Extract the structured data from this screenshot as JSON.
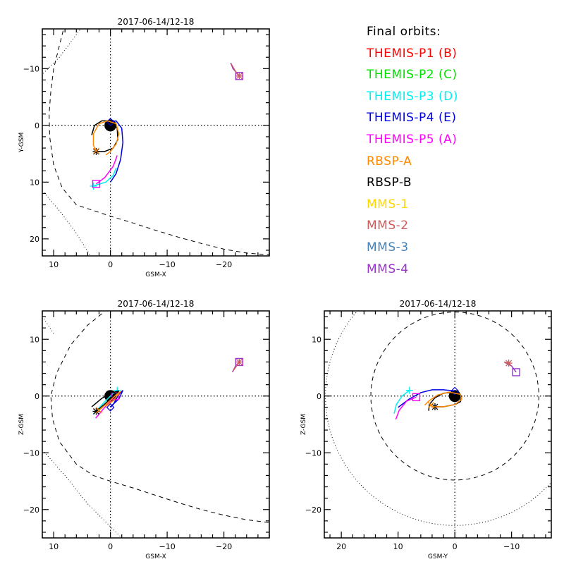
{
  "legend": {
    "title": "Final orbits:",
    "entries": [
      {
        "label": "THEMIS-P1 (B)",
        "color": "#ff0000"
      },
      {
        "label": "THEMIS-P2 (C)",
        "color": "#00e000"
      },
      {
        "label": "THEMIS-P3 (D)",
        "color": "#00f0f0"
      },
      {
        "label": "THEMIS-P4 (E)",
        "color": "#0000e0"
      },
      {
        "label": "THEMIS-P5 (A)",
        "color": "#ff00ff"
      },
      {
        "label": "RBSP-A",
        "color": "#ff8800"
      },
      {
        "label": "RBSP-B",
        "color": "#000000"
      },
      {
        "label": "MMS-1",
        "color": "#ffd700"
      },
      {
        "label": "MMS-2",
        "color": "#cd5c5c"
      },
      {
        "label": "MMS-3",
        "color": "#4682b4"
      },
      {
        "label": "MMS-4",
        "color": "#9932cc"
      }
    ]
  },
  "chart_data": [
    {
      "type": "line",
      "title": "2017-06-14/12-18",
      "xlabel": "GSM-X",
      "ylabel": "Y-GSM",
      "xlim": [
        12,
        -28
      ],
      "ylim": [
        -17,
        23
      ],
      "xticks": [
        10,
        0,
        -10,
        -20
      ],
      "yticks": [
        -10,
        0,
        10,
        20
      ],
      "grid": "dotted zero lines",
      "earth": [
        0,
        0
      ],
      "boundaries": {
        "magnetopause_dashed": [
          [
            8,
            -18
          ],
          [
            9,
            -14
          ],
          [
            10,
            -10
          ],
          [
            10.5,
            -6
          ],
          [
            10.8,
            -2
          ],
          [
            10.7,
            2
          ],
          [
            10,
            7
          ],
          [
            8.5,
            11
          ],
          [
            6,
            14
          ],
          [
            3,
            15
          ],
          [
            0,
            16
          ],
          [
            -4,
            17.2
          ],
          [
            -8,
            18.5
          ],
          [
            -12,
            19.7
          ],
          [
            -16,
            20.8
          ],
          [
            -20,
            21.8
          ],
          [
            -24,
            22.5
          ],
          [
            -28,
            22.8
          ]
        ],
        "bowshock_dotted": [
          [
            3,
            -20
          ],
          [
            6,
            -16
          ],
          [
            9,
            -12
          ],
          [
            12,
            -9
          ]
        ],
        "bowshock_dotted_lower": [
          [
            12,
            11.5
          ],
          [
            9,
            15
          ],
          [
            6,
            19
          ],
          [
            3.5,
            23
          ]
        ]
      },
      "series": [
        {
          "name": "THEMIS-P4 (E)",
          "color": "#0000e0",
          "points": [
            [
              0,
              10
            ],
            [
              -1,
              8.5
            ],
            [
              -1.8,
              6
            ],
            [
              -2.2,
              3
            ],
            [
              -2,
              0.5
            ],
            [
              -1,
              -0.8
            ],
            [
              0,
              -0.6
            ]
          ],
          "end_marker": "diamond"
        },
        {
          "name": "THEMIS-P3 (D)",
          "color": "#00f0f0",
          "points": [
            [
              -1,
              7.5
            ],
            [
              -0.5,
              8.8
            ],
            [
              0.8,
              10
            ],
            [
              2.5,
              10.5
            ],
            [
              3,
              10.7
            ]
          ],
          "end_marker": "plus"
        },
        {
          "name": "THEMIS-P5 (A)",
          "color": "#ff00ff",
          "points": [
            [
              -1.2,
              5.3
            ],
            [
              -0.5,
              7.2
            ],
            [
              1,
              9.2
            ],
            [
              2.5,
              10.3
            ]
          ],
          "end_marker": "square"
        },
        {
          "name": "RBSP-B",
          "color": "#000000",
          "points": [
            [
              3.3,
              1.7
            ],
            [
              2.8,
              0
            ],
            [
              1.5,
              -0.8
            ],
            [
              0,
              -0.8
            ],
            [
              -1.2,
              0.5
            ],
            [
              -1.3,
              2.5
            ],
            [
              -0.5,
              4
            ],
            [
              1,
              4.6
            ],
            [
              2.5,
              4.6
            ]
          ],
          "end_marker": "asterisk"
        },
        {
          "name": "RBSP-A",
          "color": "#ff8800",
          "points": [
            [
              0.8,
              5.2
            ],
            [
              0,
              4.6
            ],
            [
              -1,
              3.3
            ],
            [
              -1.5,
              1.5
            ],
            [
              -1,
              -0.3
            ],
            [
              0.5,
              -0.8
            ],
            [
              2,
              -0.3
            ],
            [
              3,
              1.5
            ],
            [
              3,
              3.5
            ],
            [
              2.5,
              4.5
            ]
          ],
          "end_marker": "x"
        },
        {
          "name": "MMS-4",
          "color": "#9932cc",
          "points": [
            [
              -21.2,
              -11
            ],
            [
              -21.6,
              -10
            ],
            [
              -22.3,
              -9.2
            ],
            [
              -22.7,
              -8.7
            ]
          ],
          "end_marker": "square"
        },
        {
          "name": "MMS-2",
          "color": "#cd5c5c",
          "points": [
            [
              -21.3,
              -10.8
            ],
            [
              -22.3,
              -9.1
            ],
            [
              -22.7,
              -8.7
            ]
          ],
          "end_marker": "asterisk"
        }
      ]
    },
    {
      "type": "line",
      "title": "2017-06-14/12-18",
      "xlabel": "GSM-X",
      "ylabel": "Z-GSM",
      "xlim": [
        12,
        -28
      ],
      "ylim": [
        -25,
        15
      ],
      "xticks": [
        10,
        0,
        -10,
        -20
      ],
      "yticks": [
        10,
        0,
        -10,
        -20
      ],
      "grid": "dotted zero lines",
      "earth": [
        0,
        0
      ],
      "boundaries": {
        "magnetopause_dashed": [
          [
            1.5,
            14.5
          ],
          [
            4,
            12.5
          ],
          [
            7,
            9
          ],
          [
            9.5,
            4
          ],
          [
            10.5,
            0
          ],
          [
            10.2,
            -4
          ],
          [
            9,
            -8
          ],
          [
            6,
            -12
          ],
          [
            3,
            -14
          ],
          [
            0,
            -15
          ],
          [
            -4,
            -16.2
          ],
          [
            -8,
            -17.5
          ],
          [
            -12,
            -18.8
          ],
          [
            -16,
            -20
          ],
          [
            -20,
            -21
          ],
          [
            -24,
            -21.8
          ],
          [
            -28,
            -22.3
          ]
        ],
        "bowshock_dotted": [
          [
            10,
            11
          ],
          [
            12,
            14
          ]
        ],
        "bowshock_dotted_lower": [
          [
            12,
            -9.5
          ],
          [
            8,
            -14
          ],
          [
            4,
            -19
          ],
          [
            0.5,
            -22.5
          ],
          [
            -2,
            -25
          ]
        ]
      },
      "series": [
        {
          "name": "THEMIS-P4 (E)",
          "color": "#0000e0",
          "points": [
            [
              0,
              -1.9
            ],
            [
              -1.5,
              -0.5
            ],
            [
              -2.2,
              1
            ],
            [
              -1.5,
              0.3
            ],
            [
              -0.5,
              -1.5
            ],
            [
              0,
              -2
            ]
          ],
          "end_marker": "diamond"
        },
        {
          "name": "THEMIS-P3 (D)",
          "color": "#00f0f0",
          "points": [
            [
              3,
              -3.2
            ],
            [
              1,
              -1
            ],
            [
              -0.5,
              0.5
            ],
            [
              -1.2,
              1
            ]
          ],
          "end_marker": "plus"
        },
        {
          "name": "THEMIS-P5 (A)",
          "color": "#ff00ff",
          "points": [
            [
              2.6,
              -3.9
            ],
            [
              1,
              -2
            ],
            [
              -0.8,
              0
            ]
          ],
          "end_marker": "square"
        },
        {
          "name": "RBSP-B",
          "color": "#000000",
          "points": [
            [
              3.3,
              -1.9
            ],
            [
              1.5,
              -0.4
            ],
            [
              0,
              0.5
            ],
            [
              -1.5,
              0.9
            ],
            [
              -0.5,
              0
            ],
            [
              1,
              -1.4
            ],
            [
              2.5,
              -2.7
            ]
          ],
          "end_marker": "asterisk"
        },
        {
          "name": "RBSP-A",
          "color": "#ff8800",
          "points": [
            [
              0.8,
              -1.8
            ],
            [
              -0.5,
              -0.8
            ],
            [
              -1.8,
              0.8
            ],
            [
              -1,
              0.2
            ],
            [
              0.5,
              -1.2
            ],
            [
              2,
              -2.5
            ]
          ],
          "end_marker": "x"
        },
        {
          "name": "MMS-4",
          "color": "#9932cc",
          "points": [
            [
              -21.5,
              4.2
            ],
            [
              -22,
              5.2
            ],
            [
              -22.7,
              6
            ]
          ],
          "end_marker": "square"
        },
        {
          "name": "MMS-2",
          "color": "#cd5c5c",
          "points": [
            [
              -21.6,
              4.4
            ],
            [
              -22.7,
              6
            ]
          ],
          "end_marker": "asterisk"
        }
      ]
    },
    {
      "type": "line",
      "title": "2017-06-14/12-18",
      "xlabel": "GSM-Y",
      "ylabel": "Z-GSM",
      "xlim": [
        23,
        -17
      ],
      "ylim": [
        -25,
        15
      ],
      "xticks": [
        20,
        10,
        0,
        -10
      ],
      "yticks": [
        10,
        0,
        -10,
        -20
      ],
      "grid": "dotted zero lines",
      "earth": [
        0,
        0
      ],
      "boundaries": {
        "magnetopause_circle_radius": 14.8,
        "bowshock_circle_radius": 22.8
      },
      "series": [
        {
          "name": "THEMIS-P4 (E)",
          "color": "#0000e0",
          "points": [
            [
              10,
              -2
            ],
            [
              8,
              -0.5
            ],
            [
              6,
              0.6
            ],
            [
              4,
              1.1
            ],
            [
              2,
              1.1
            ],
            [
              0,
              0.9
            ]
          ],
          "end_marker": "diamond"
        },
        {
          "name": "THEMIS-P3 (D)",
          "color": "#00f0f0",
          "points": [
            [
              10.7,
              -3.1
            ],
            [
              10.3,
              -1.5
            ],
            [
              9.3,
              0
            ],
            [
              8,
              1
            ]
          ],
          "end_marker": "plus"
        },
        {
          "name": "THEMIS-P5 (A)",
          "color": "#ff00ff",
          "points": [
            [
              10.4,
              -4.1
            ],
            [
              9.8,
              -2.5
            ],
            [
              8.5,
              -0.9
            ],
            [
              6.8,
              -0.2
            ]
          ],
          "end_marker": "square"
        },
        {
          "name": "RBSP-B",
          "color": "#000000",
          "points": [
            [
              4.6,
              -2.6
            ],
            [
              4.5,
              -1.5
            ],
            [
              3.5,
              -0.3
            ],
            [
              2,
              0.5
            ],
            [
              0,
              0.7
            ],
            [
              -1.2,
              0
            ],
            [
              -1,
              -1
            ],
            [
              0,
              -1.5
            ],
            [
              2,
              -1.9
            ],
            [
              3.5,
              -1.9
            ]
          ],
          "end_marker": "asterisk"
        },
        {
          "name": "RBSP-A",
          "color": "#ff8800",
          "points": [
            [
              5.3,
              -1.6
            ],
            [
              4.5,
              -0.8
            ],
            [
              3,
              0.2
            ],
            [
              1,
              0.7
            ],
            [
              -1,
              0.3
            ],
            [
              -1.2,
              -0.6
            ],
            [
              0,
              -1.5
            ],
            [
              2,
              -1.9
            ],
            [
              4,
              -1.9
            ],
            [
              4.2,
              -1.6
            ]
          ],
          "end_marker": "x"
        },
        {
          "name": "MMS-4",
          "color": "#9932cc",
          "points": [
            [
              -8.7,
              6
            ],
            [
              -10,
              5.3
            ],
            [
              -10.8,
              4.2
            ]
          ],
          "end_marker": "square"
        },
        {
          "name": "MMS-2",
          "color": "#cd5c5c",
          "points": [
            [
              -8.7,
              6
            ],
            [
              -9.5,
              5.8
            ]
          ],
          "end_marker": "asterisk"
        }
      ]
    }
  ]
}
